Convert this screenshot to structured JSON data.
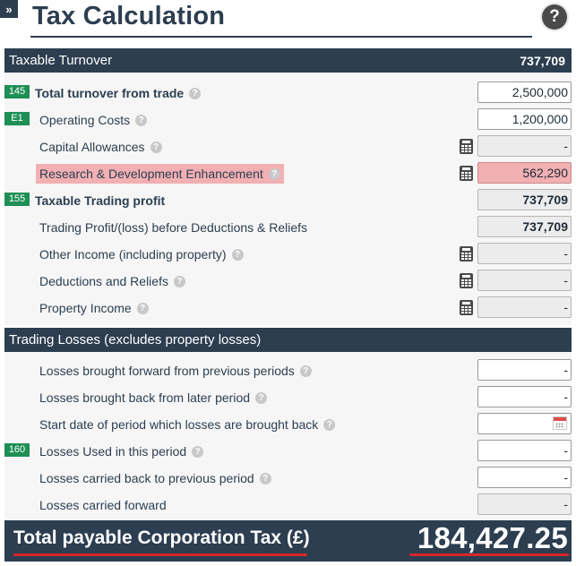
{
  "header": {
    "expand_glyph": "»",
    "title": "Tax Calculation",
    "help_glyph": "?"
  },
  "taxable_turnover": {
    "label": "Taxable Turnover",
    "value": "737,709",
    "rows": [
      {
        "badge": "145",
        "label": "Total turnover from trade",
        "bold": true,
        "help": true,
        "calc": false,
        "value": "2,500,000",
        "kind": "input"
      },
      {
        "badge": "E1",
        "label": "Operating Costs",
        "bold": false,
        "help": true,
        "calc": false,
        "value": "1,200,000",
        "kind": "input"
      },
      {
        "badge": "",
        "label": "Capital Allowances",
        "bold": false,
        "help": true,
        "calc": true,
        "value": "-",
        "kind": "readonly"
      },
      {
        "badge": "",
        "label": "Research & Development Enhancement",
        "bold": false,
        "help": true,
        "calc": true,
        "value": "562,290",
        "kind": "highlight"
      },
      {
        "badge": "155",
        "label": "Taxable Trading profit",
        "bold": true,
        "help": false,
        "calc": false,
        "value": "737,709",
        "kind": "readonly-bold"
      },
      {
        "badge": "",
        "label": "Trading Profit/(loss) before Deductions & Reliefs",
        "bold": false,
        "help": false,
        "calc": false,
        "value": "737,709",
        "kind": "readonly-bold"
      },
      {
        "badge": "",
        "label": "Other Income (including property)",
        "bold": false,
        "help": true,
        "calc": true,
        "value": "-",
        "kind": "readonly"
      },
      {
        "badge": "",
        "label": "Deductions and Reliefs",
        "bold": false,
        "help": true,
        "calc": true,
        "value": "-",
        "kind": "readonly"
      },
      {
        "badge": "",
        "label": "Property Income",
        "bold": false,
        "help": true,
        "calc": true,
        "value": "-",
        "kind": "readonly"
      }
    ]
  },
  "trading_losses": {
    "label": "Trading Losses (excludes property losses)",
    "rows": [
      {
        "badge": "",
        "label": "Losses brought forward from previous periods",
        "help": true,
        "value": "-",
        "kind": "input"
      },
      {
        "badge": "",
        "label": "Losses brought back from later period",
        "help": true,
        "value": "-",
        "kind": "input"
      },
      {
        "badge": "",
        "label": "Start date of period which losses are brought back",
        "help": true,
        "value": "",
        "kind": "date"
      },
      {
        "badge": "160",
        "label": "Losses Used in this period",
        "help": true,
        "value": "-",
        "kind": "input"
      },
      {
        "badge": "",
        "label": "Losses carried back to previous period",
        "help": true,
        "value": "-",
        "kind": "input"
      },
      {
        "badge": "",
        "label": "Losses carried forward",
        "help": false,
        "value": "-",
        "kind": "readonly"
      }
    ]
  },
  "total": {
    "label": "Total payable Corporation Tax (£)",
    "value": "184,427.25"
  }
}
